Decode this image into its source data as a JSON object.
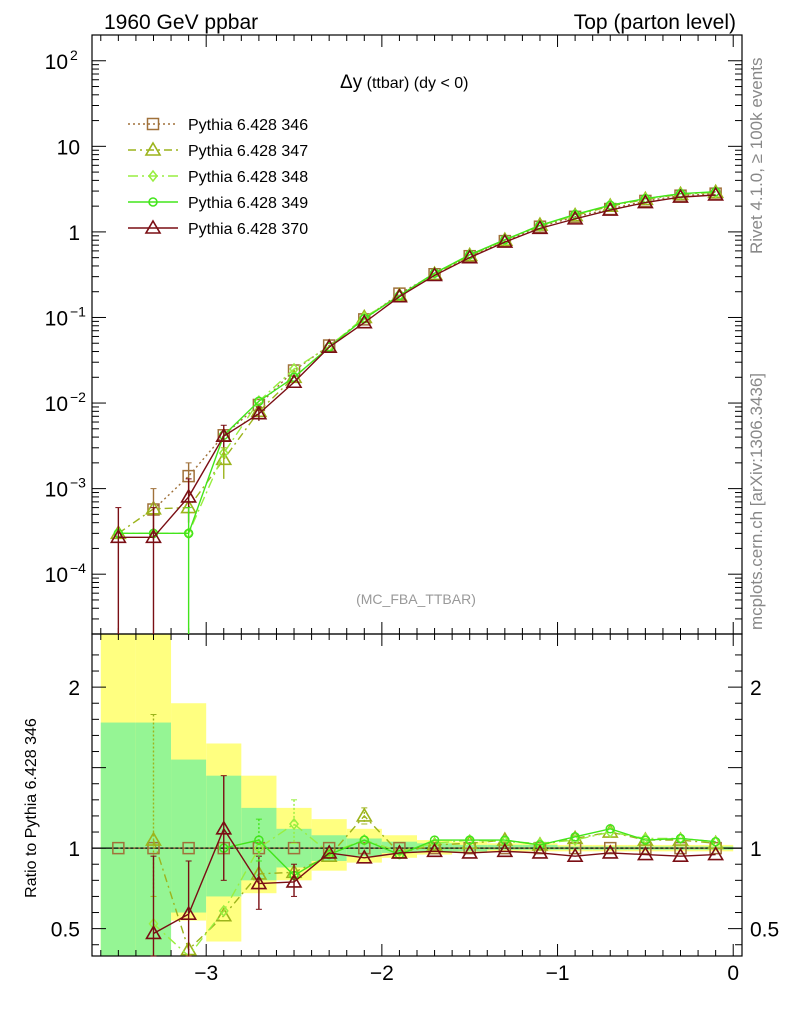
{
  "header": {
    "left_title": "1960 GeV ppbar",
    "right_title": "Top (parton level)"
  },
  "side_labels": {
    "rivet": "Rivet 4.1.0, ≥ 100k events",
    "mcplots": "mcplots.cern.ch [arXiv:1306.3436]"
  },
  "colors": {
    "p346": "#a0713a",
    "p347": "#9cb41c",
    "p348": "#98ee40",
    "p349": "#42e51b",
    "p370": "#7a0e14",
    "band_outer": "#ffff80",
    "band_inner": "#95f594"
  },
  "chart_data": {
    "type": "line",
    "title_symbol": "Δy",
    "title_rest": " (ttbar) (dy < 0)",
    "watermark": "(MC_FBA_TTBAR)",
    "ratio_ylabel": "Ratio to Pythia 6.428 346",
    "xlim": [
      -3.65,
      0.05
    ],
    "ylim": [
      2e-05,
      200
    ],
    "ratio_ylim": [
      0.33,
      2.33
    ],
    "x_ticks": [
      {
        "v": -3,
        "label": "−3"
      },
      {
        "v": -2,
        "label": "−2"
      },
      {
        "v": -1,
        "label": "−1"
      },
      {
        "v": 0,
        "label": "0"
      }
    ],
    "y_ticks": [
      {
        "v": 0.0001,
        "base": "10",
        "exp": "−4"
      },
      {
        "v": 0.001,
        "base": "10",
        "exp": "−3"
      },
      {
        "v": 0.01,
        "base": "10",
        "exp": "−2"
      },
      {
        "v": 0.1,
        "base": "10",
        "exp": "−1"
      },
      {
        "v": 1,
        "base": "1",
        "exp": ""
      },
      {
        "v": 10,
        "base": "10",
        "exp": ""
      },
      {
        "v": 100,
        "base": "10",
        "exp": "2"
      }
    ],
    "ratio_ticks": [
      {
        "v": 0.5,
        "label": "0.5"
      },
      {
        "v": 1,
        "label": "1"
      },
      {
        "v": 2,
        "label": "2"
      }
    ],
    "x": [
      -3.5,
      -3.3,
      -3.1,
      -2.9,
      -2.7,
      -2.5,
      -2.3,
      -2.1,
      -1.9,
      -1.7,
      -1.5,
      -1.3,
      -1.1,
      -0.9,
      -0.7,
      -0.5,
      -0.3,
      -0.1
    ],
    "series": [
      {
        "name": "Pythia 6.428 346",
        "key": "p346",
        "marker": "square",
        "dash": "2,3",
        "values": [
          null,
          0.00057,
          0.0014,
          0.0042,
          0.0095,
          0.024,
          0.047,
          0.095,
          0.19,
          0.32,
          0.52,
          0.78,
          1.15,
          1.5,
          1.85,
          2.3,
          2.65,
          2.8
        ],
        "ratio": [
          1,
          1,
          1,
          1,
          1,
          1,
          1,
          1,
          1,
          1,
          1,
          1,
          1,
          1,
          1,
          1,
          1,
          1
        ]
      },
      {
        "name": "Pythia 6.428 347",
        "key": "p347",
        "marker": "triangle",
        "dash": "8,4,2,4",
        "values": [
          0.0003,
          0.00058,
          0.0006,
          0.0022,
          0.008,
          0.02,
          0.045,
          0.1,
          0.18,
          0.32,
          0.53,
          0.8,
          1.2,
          1.55,
          2.0,
          2.4,
          2.75,
          2.9
        ],
        "ratio": [
          null,
          1.05,
          0.37,
          0.58,
          0.84,
          0.85,
          0.95,
          1.2,
          0.97,
          1.02,
          1.03,
          1.05,
          1.02,
          1.06,
          1.1,
          1.05,
          1.05,
          1.03
        ]
      },
      {
        "name": "Pythia 6.428 348",
        "key": "p348",
        "marker": "diamond",
        "dash": "10,4,2,4",
        "values": [
          0.0003,
          0.0003,
          0.0003,
          0.0026,
          0.0105,
          0.025,
          0.046,
          0.1,
          0.18,
          0.33,
          0.54,
          0.81,
          1.18,
          1.58,
          2.05,
          2.45,
          2.8,
          2.9
        ],
        "ratio": [
          null,
          0.53,
          0.21,
          0.61,
          1.0,
          1.15,
          0.97,
          1.05,
          0.98,
          1.03,
          1.05,
          1.04,
          1.03,
          1.05,
          1.1,
          1.06,
          1.06,
          1.04
        ]
      },
      {
        "name": "Pythia 6.428 349",
        "key": "p349",
        "marker": "circle",
        "dash": "",
        "values": [
          0.0003,
          0.0003,
          0.0003,
          0.0042,
          0.0105,
          0.02,
          0.045,
          0.097,
          0.18,
          0.33,
          0.54,
          0.81,
          1.19,
          1.6,
          2.05,
          2.45,
          2.8,
          2.95
        ],
        "ratio": [
          null,
          null,
          null,
          1.0,
          1.05,
          0.83,
          0.96,
          1.05,
          0.96,
          1.05,
          1.05,
          1.05,
          1.02,
          1.07,
          1.12,
          1.05,
          1.06,
          1.04
        ]
      },
      {
        "name": "Pythia 6.428 370",
        "key": "p370",
        "marker": "triangle",
        "dash": "",
        "values": [
          0.00027,
          0.00027,
          0.0008,
          0.0041,
          0.0075,
          0.0175,
          0.045,
          0.087,
          0.175,
          0.31,
          0.5,
          0.76,
          1.1,
          1.42,
          1.8,
          2.2,
          2.55,
          2.7
        ],
        "ratio": [
          null,
          0.47,
          0.59,
          1.12,
          0.78,
          0.79,
          0.97,
          0.94,
          0.97,
          0.98,
          0.97,
          0.98,
          0.97,
          0.95,
          0.97,
          0.96,
          0.95,
          0.96
        ]
      }
    ],
    "error_bars": [
      {
        "key": "p346",
        "x": -3.3,
        "lo": 0.00025,
        "hi": 0.001
      },
      {
        "key": "p346",
        "x": -3.1,
        "lo": 0.0008,
        "hi": 0.002
      },
      {
        "key": "p370",
        "x": -3.5,
        "lo": 1e-05,
        "hi": 0.0006
      },
      {
        "key": "p370",
        "x": -3.3,
        "lo": 1e-05,
        "hi": 0.0006
      },
      {
        "key": "p370",
        "x": -3.1,
        "lo": 0.0004,
        "hi": 0.0013
      },
      {
        "key": "p370",
        "x": -2.9,
        "lo": 0.0027,
        "hi": 0.0055
      },
      {
        "key": "p349",
        "x": -3.1,
        "lo": 1e-05,
        "hi": 0.0006
      },
      {
        "key": "p347",
        "x": -2.9,
        "lo": 0.0013,
        "hi": 0.003
      },
      {
        "key": "p370",
        "x": -2.7,
        "lo": 0.0062,
        "hi": 0.009
      }
    ],
    "ratio_error_bars": [
      {
        "key": "p347",
        "x": -3.3,
        "lo": 0.7,
        "hi": 1.83
      },
      {
        "key": "p370",
        "x": -3.3,
        "lo": 0.2,
        "hi": 0.95
      },
      {
        "key": "p370",
        "x": -3.1,
        "lo": 0.2,
        "hi": 0.92
      },
      {
        "key": "p370",
        "x": -2.9,
        "lo": 0.8,
        "hi": 1.45
      },
      {
        "key": "p370",
        "x": -2.7,
        "lo": 0.62,
        "hi": 0.95
      },
      {
        "key": "p370",
        "x": -2.5,
        "lo": 0.7,
        "hi": 0.9
      },
      {
        "key": "p348",
        "x": -2.5,
        "lo": 1.03,
        "hi": 1.3
      },
      {
        "key": "p347",
        "x": -2.1,
        "lo": 1.15,
        "hi": 1.25
      },
      {
        "key": "p349",
        "x": -2.7,
        "lo": 0.92,
        "hi": 1.18
      }
    ],
    "bands": {
      "edges": [
        -3.6,
        -3.4,
        -3.2,
        -3.0,
        -2.8,
        -2.6,
        -2.4,
        -2.2,
        -2.0,
        -1.8,
        -1.6,
        -1.4,
        -1.2,
        -1.0,
        -0.8,
        -0.6,
        -0.4,
        -0.2,
        0.0
      ],
      "outer_hi": [
        2.5,
        2.5,
        1.9,
        1.65,
        1.45,
        1.25,
        1.18,
        1.12,
        1.08,
        1.05,
        1.04,
        1.03,
        1.03,
        1.02,
        1.02,
        1.02,
        1.02,
        1.02
      ],
      "outer_lo": [
        0.2,
        0.2,
        0.55,
        0.42,
        0.72,
        0.8,
        0.86,
        0.91,
        0.94,
        0.96,
        0.97,
        0.98,
        0.98,
        0.98,
        0.98,
        0.98,
        0.98,
        0.98
      ],
      "inner_hi": [
        1.78,
        1.78,
        1.55,
        1.45,
        1.25,
        1.12,
        1.08,
        1.06,
        1.04,
        1.03,
        1.02,
        1.02,
        1.02,
        1.01,
        1.01,
        1.01,
        1.01,
        1.01
      ],
      "inner_lo": [
        0.2,
        0.2,
        0.6,
        0.7,
        0.8,
        0.88,
        0.92,
        0.95,
        0.97,
        0.98,
        0.98,
        0.99,
        0.99,
        0.99,
        0.99,
        0.99,
        0.99,
        0.99
      ]
    }
  }
}
